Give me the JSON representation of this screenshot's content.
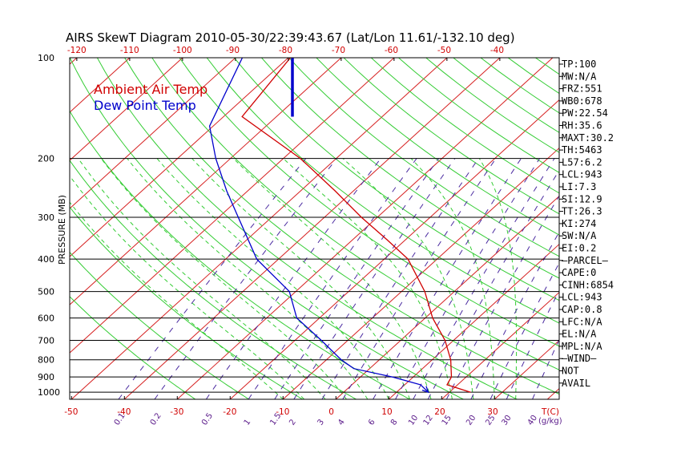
{
  "chart_data": {
    "type": "line",
    "title": "AIRS SkewT Diagram 2010-05-30/22:39:43.67 (Lat/Lon 11.61/-132.10 deg)",
    "ylabel": "PRESSURE (MB)",
    "pressure_ticks": [
      100,
      200,
      300,
      400,
      500,
      600,
      700,
      800,
      900,
      1000
    ],
    "pressure_range": [
      100,
      1050
    ],
    "top_temp_ticks": [
      -120,
      -110,
      -100,
      -90,
      -80,
      -70,
      -60,
      -50,
      -40
    ],
    "bottom_temp_ticks": [
      -50,
      -40,
      -30,
      -20,
      -10,
      0,
      10,
      20,
      30
    ],
    "bottom_temp_axis_label": "T(C)",
    "mixing_ratio_labels": [
      "0.1",
      "0.2",
      "0.5",
      "1",
      "1.5",
      "2",
      "3",
      "4",
      "6",
      "8",
      "10",
      "12",
      "15",
      "20",
      "25",
      "30",
      "40"
    ],
    "mixing_ratio_unit_label": "(g/kg)",
    "legend": [
      {
        "name": "Ambient Air Temp",
        "color": "#d00000"
      },
      {
        "name": "Dew Point Temp",
        "color": "#0000cc"
      }
    ],
    "series": [
      {
        "name": "Ambient Air Temp",
        "color": "#d00000",
        "points": [
          {
            "p": 100,
            "t": -79.6
          },
          {
            "p": 150,
            "t": -76.5
          },
          {
            "p": 200,
            "t": -56.8
          },
          {
            "p": 250,
            "t": -43.5
          },
          {
            "p": 300,
            "t": -33.0
          },
          {
            "p": 350,
            "t": -23.5
          },
          {
            "p": 400,
            "t": -15.5
          },
          {
            "p": 500,
            "t": -5.6
          },
          {
            "p": 600,
            "t": 1.4
          },
          {
            "p": 700,
            "t": 8.4
          },
          {
            "p": 800,
            "t": 13.5
          },
          {
            "p": 900,
            "t": 17.2
          },
          {
            "p": 950,
            "t": 18.0
          },
          {
            "p": 1000,
            "t": 24.0
          }
        ]
      },
      {
        "name": "Dew Point Temp",
        "color": "#0000cc",
        "points": [
          {
            "p": 100,
            "t": -88.7
          },
          {
            "p": 160,
            "t": -80.7
          },
          {
            "p": 200,
            "t": -72.8
          },
          {
            "p": 250,
            "t": -64.0
          },
          {
            "p": 300,
            "t": -56.3
          },
          {
            "p": 400,
            "t": -44.1
          },
          {
            "p": 500,
            "t": -31.2
          },
          {
            "p": 600,
            "t": -24.3
          },
          {
            "p": 700,
            "t": -15.0
          },
          {
            "p": 800,
            "t": -7.2
          },
          {
            "p": 850,
            "t": -3.0
          },
          {
            "p": 900,
            "t": 6.0
          },
          {
            "p": 950,
            "t": 13.0
          },
          {
            "p": 1000,
            "t": 16.0
          }
        ]
      }
    ],
    "wind_barb_marker": {
      "p_top": 100,
      "p_bottom": 150,
      "color": "#0000cc"
    }
  },
  "indices": [
    "TP:100",
    "MW:N/A",
    "FRZ:551",
    "WB0:678",
    "PW:22.54",
    "RH:35.6",
    "MAXT:30.2",
    "TH:5463",
    "L57:6.2",
    "LCL:943",
    "LI:7.3",
    "SI:12.9",
    "TT:26.3",
    "KI:274",
    "SW:N/A",
    "EI:0.2",
    "—PARCEL—",
    "CAPE:0",
    "CINH:6854",
    "LCL:943",
    "CAP:0.8",
    "LFC:N/A",
    "EL:N/A",
    "MPL:N/A",
    "—WIND—",
    "NOT",
    "AVAIL"
  ]
}
